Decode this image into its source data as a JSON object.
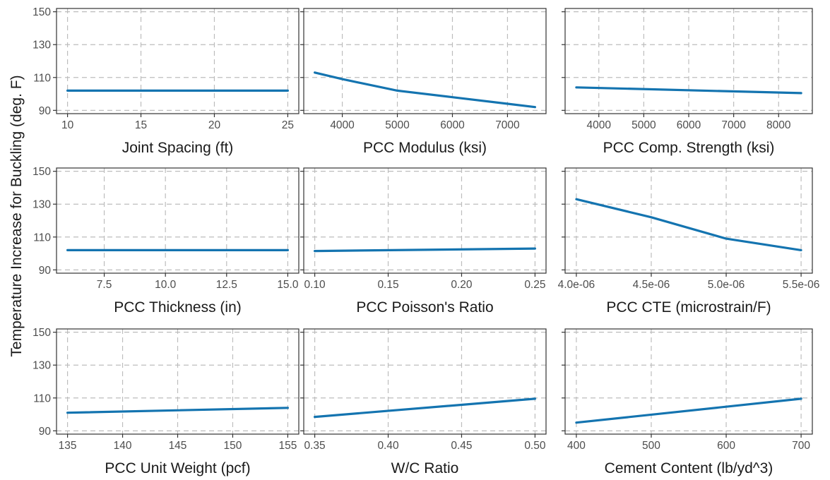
{
  "figure": {
    "ylabel": "Temperature Increase for Buckling (deg. F)",
    "line_color": "#1474b0",
    "grid_color": "#bdbdbd",
    "panel_border_color": "#333333",
    "shared_y": {
      "ylim": [
        88,
        152
      ],
      "yticks": [
        90,
        110,
        130,
        150
      ],
      "ytick_labels": [
        "90",
        "110",
        "130",
        "150"
      ]
    }
  },
  "chart_data": [
    {
      "type": "line",
      "xlabel": "Joint Spacing (ft)",
      "xlim": [
        9.25,
        25.75
      ],
      "xticks": [
        10,
        15,
        20,
        25
      ],
      "xtick_labels": [
        "10",
        "15",
        "20",
        "25"
      ],
      "x": [
        10,
        25
      ],
      "y": [
        102,
        102
      ]
    },
    {
      "type": "line",
      "xlabel": "PCC Modulus (ksi)",
      "xlim": [
        3300,
        7700
      ],
      "xticks": [
        4000,
        5000,
        6000,
        7000
      ],
      "xtick_labels": [
        "4000",
        "5000",
        "6000",
        "7000"
      ],
      "x": [
        3500,
        4000,
        5000,
        6000,
        7000,
        7500
      ],
      "y": [
        113,
        109,
        102,
        98,
        94,
        92
      ]
    },
    {
      "type": "line",
      "xlabel": "PCC Comp. Strength (ksi)",
      "xlim": [
        3250,
        8750
      ],
      "xticks": [
        4000,
        5000,
        6000,
        7000,
        8000
      ],
      "xtick_labels": [
        "4000",
        "5000",
        "6000",
        "7000",
        "8000"
      ],
      "x": [
        3500,
        8500
      ],
      "y": [
        104,
        100.5
      ]
    },
    {
      "type": "line",
      "xlabel": "PCC Thickness (in)",
      "xlim": [
        5.55,
        15.45
      ],
      "xticks": [
        7.5,
        10.0,
        12.5,
        15.0
      ],
      "xtick_labels": [
        "7.5",
        "10.0",
        "12.5",
        "15.0"
      ],
      "x": [
        6,
        15
      ],
      "y": [
        102,
        102
      ]
    },
    {
      "type": "line",
      "xlabel": "PCC Poisson's Ratio",
      "xlim": [
        0.0925,
        0.2575
      ],
      "xticks": [
        0.1,
        0.15,
        0.2,
        0.25
      ],
      "xtick_labels": [
        "0.10",
        "0.15",
        "0.20",
        "0.25"
      ],
      "x": [
        0.1,
        0.25
      ],
      "y": [
        101.5,
        103
      ]
    },
    {
      "type": "line",
      "xlabel": "PCC CTE (microstrain/F)",
      "xlim": [
        3.925e-06,
        5.575e-06
      ],
      "xticks": [
        4e-06,
        4.5e-06,
        5e-06,
        5.5e-06
      ],
      "xtick_labels": [
        "4.0e-06",
        "4.5e-06",
        "5.0e-06",
        "5.5e-06"
      ],
      "x": [
        4e-06,
        4.5e-06,
        5e-06,
        5.5e-06
      ],
      "y": [
        133,
        122,
        109,
        102
      ]
    },
    {
      "type": "line",
      "xlabel": "PCC Unit Weight (pcf)",
      "xlim": [
        134,
        156
      ],
      "xticks": [
        135,
        140,
        145,
        150,
        155
      ],
      "xtick_labels": [
        "135",
        "140",
        "145",
        "150",
        "155"
      ],
      "x": [
        135,
        155
      ],
      "y": [
        101,
        104
      ]
    },
    {
      "type": "line",
      "xlabel": "W/C Ratio",
      "xlim": [
        0.3425,
        0.5075
      ],
      "xticks": [
        0.35,
        0.4,
        0.45,
        0.5
      ],
      "xtick_labels": [
        "0.35",
        "0.40",
        "0.45",
        "0.50"
      ],
      "x": [
        0.35,
        0.5
      ],
      "y": [
        98.5,
        109.5
      ]
    },
    {
      "type": "line",
      "xlabel": "Cement Content (lb/yd^3)",
      "xlim": [
        385,
        715
      ],
      "xticks": [
        400,
        500,
        600,
        700
      ],
      "xtick_labels": [
        "400",
        "500",
        "600",
        "700"
      ],
      "x": [
        400,
        700
      ],
      "y": [
        95,
        109.5
      ]
    }
  ]
}
